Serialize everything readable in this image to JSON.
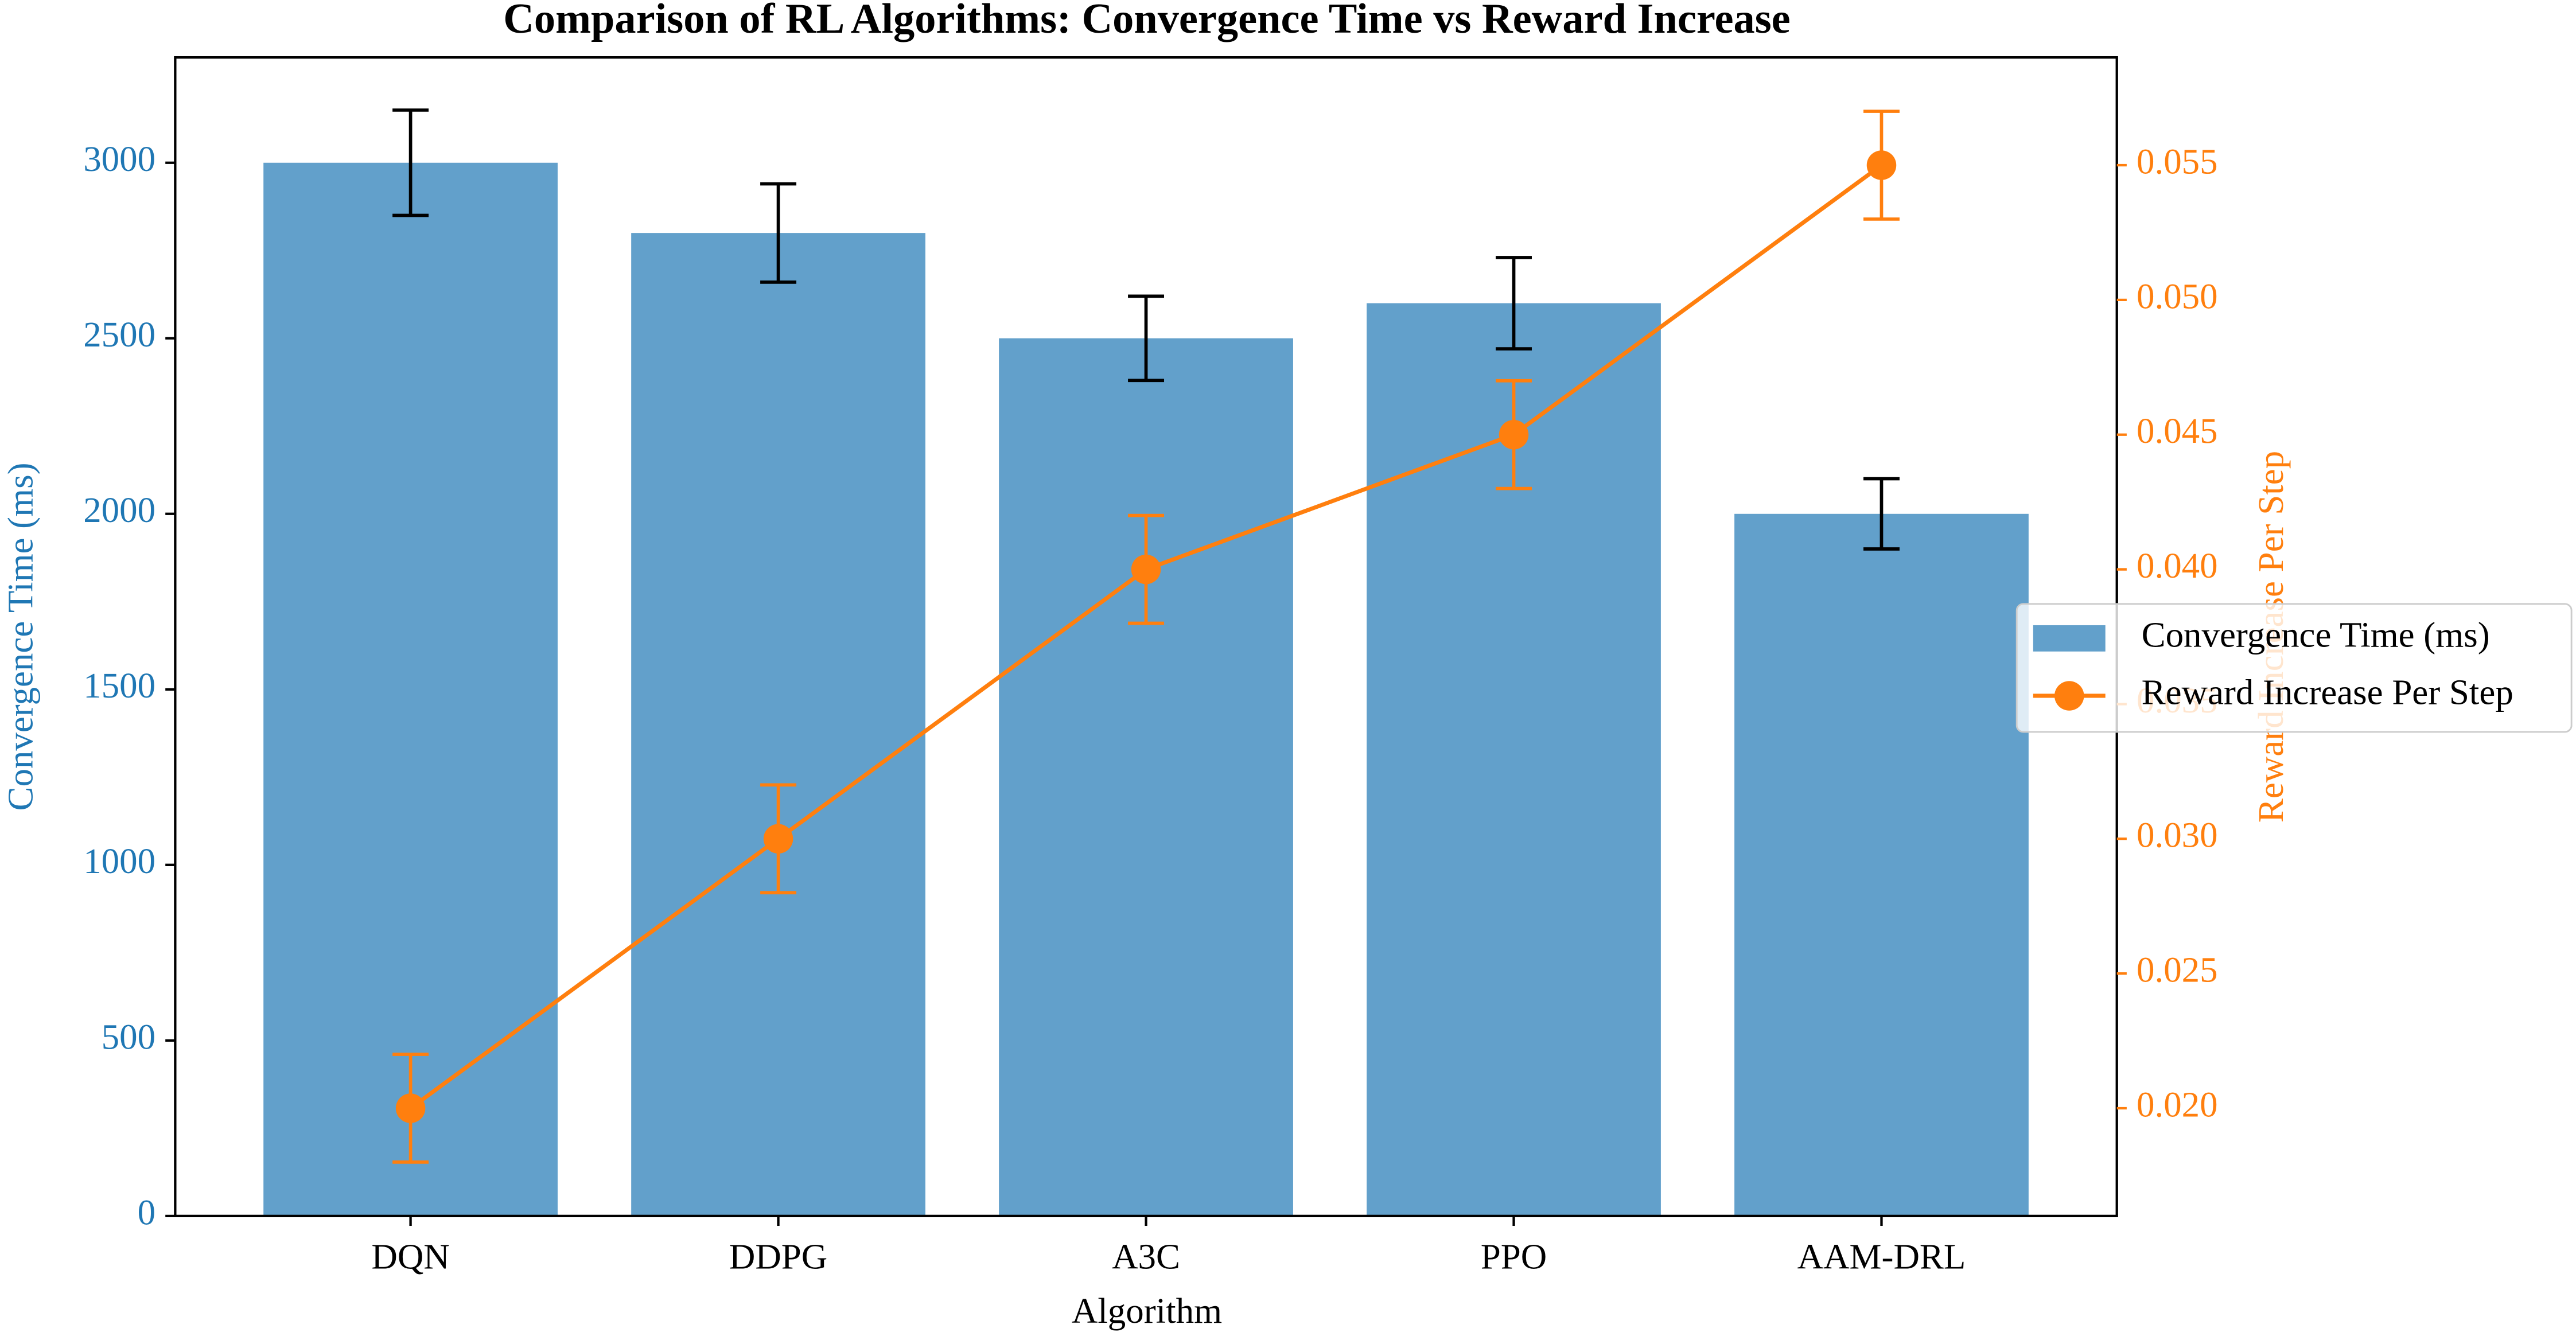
{
  "chart_data": {
    "type": "combo",
    "title": "Comparison of RL Algorithms: Convergence Time vs Reward Increase",
    "x_label": "Algorithm",
    "y_label": "Convergence Time (ms)",
    "y2_label": "Reward Increase Per Step",
    "categories": [
      "DQN",
      "DDPG",
      "A3C",
      "PPO",
      "AAM-DRL"
    ],
    "series": [
      {
        "name": "Convergence Time (ms)",
        "type": "bar",
        "color": "#62a0cb",
        "axis_color": "#1f77b4",
        "error_color": "#000000",
        "values": [
          3000,
          2800,
          2500,
          2600,
          2000
        ],
        "errors": [
          150,
          140,
          120,
          130,
          100
        ]
      },
      {
        "name": "Reward Increase Per Step",
        "type": "line",
        "axis": "y2",
        "color": "#ff7f0e",
        "values": [
          0.02,
          0.03,
          0.04,
          0.045,
          0.055
        ],
        "errors": [
          0.002,
          0.002,
          0.002,
          0.002,
          0.002
        ]
      }
    ],
    "ylim": [
      0,
      3300
    ],
    "yticks": [
      0,
      500,
      1000,
      1500,
      2000,
      2500,
      3000
    ],
    "y2lim": [
      0.016,
      0.059
    ],
    "y2ticks": [
      {
        "value": 0.02,
        "label": "0.020"
      },
      {
        "value": 0.025,
        "label": "0.025"
      },
      {
        "value": 0.03,
        "label": "0.030"
      },
      {
        "value": 0.035,
        "label": "0.035"
      },
      {
        "value": 0.04,
        "label": "0.040"
      },
      {
        "value": 0.045,
        "label": "0.045"
      },
      {
        "value": 0.05,
        "label": "0.050"
      },
      {
        "value": 0.055,
        "label": "0.055"
      }
    ],
    "legend": "center right",
    "grid": false
  }
}
